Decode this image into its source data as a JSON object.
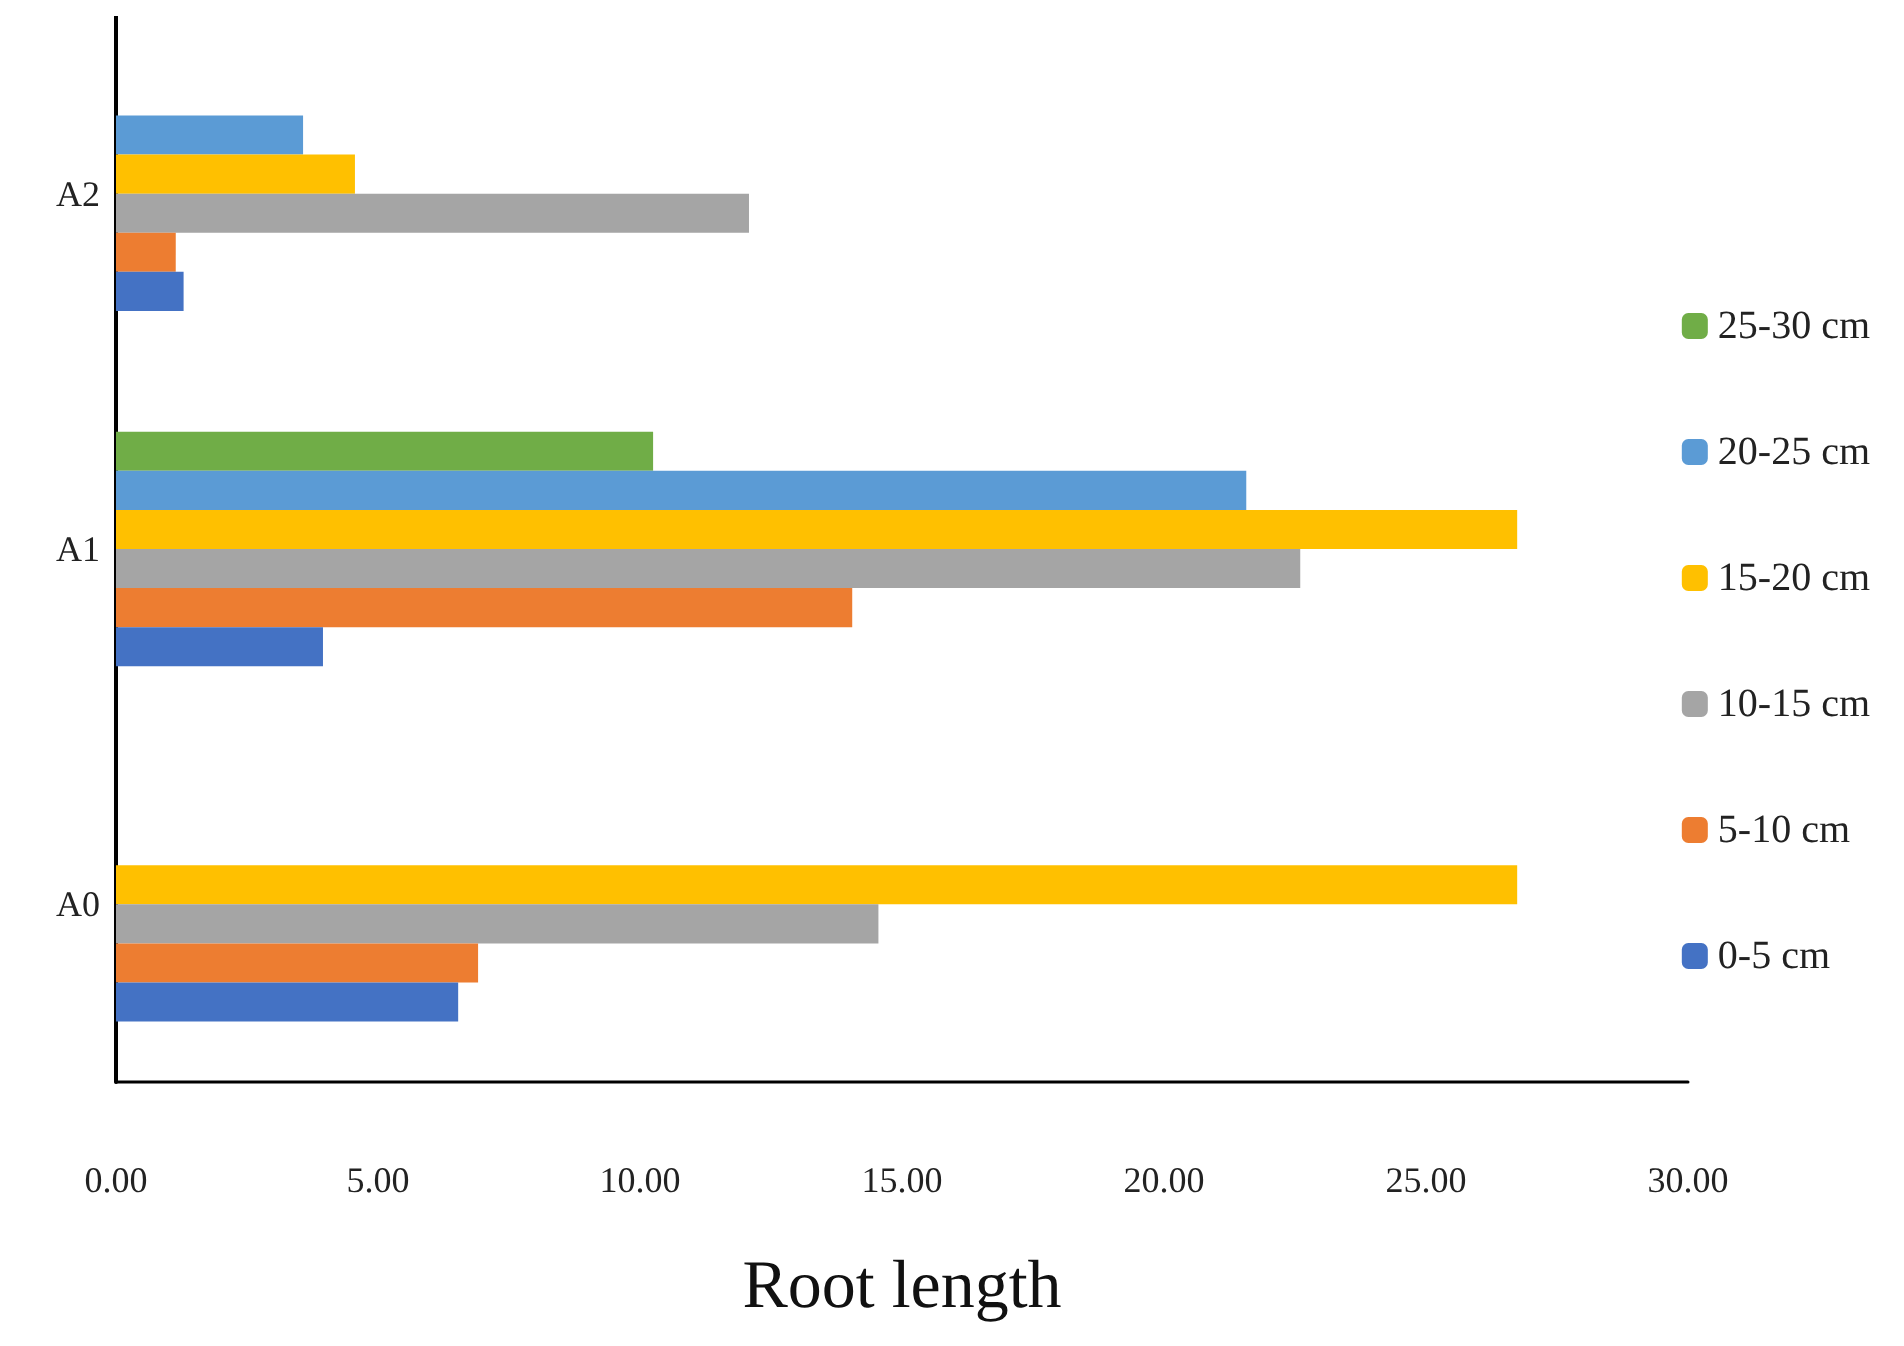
{
  "chart_data": {
    "type": "bar",
    "orientation": "horizontal",
    "xlabel": "Root length",
    "categories": [
      "A2",
      "A1",
      "A0"
    ],
    "series": [
      {
        "name": "0-5 cm",
        "color": "#4472c4",
        "values": [
          1.29,
          3.95,
          6.53
        ]
      },
      {
        "name": "5-10 cm",
        "color": "#ed7d31",
        "values": [
          1.14,
          14.05,
          6.91
        ]
      },
      {
        "name": "10-15 cm",
        "color": "#a5a5a5",
        "values": [
          12.08,
          22.6,
          14.55
        ]
      },
      {
        "name": "15-20 cm",
        "color": "#ffc000",
        "values": [
          4.56,
          26.74,
          26.74
        ]
      },
      {
        "name": "20-25 cm",
        "color": "#5b9bd5",
        "values": [
          3.57,
          21.57,
          null
        ]
      },
      {
        "name": "25-30 cm",
        "color": "#70ad47",
        "values": [
          null,
          10.25,
          null
        ]
      }
    ],
    "xlim": [
      0,
      30
    ],
    "xticks": [
      {
        "value": 0,
        "label": "0.00"
      },
      {
        "value": 5,
        "label": "5.00"
      },
      {
        "value": 10,
        "label": "10.00"
      },
      {
        "value": 15,
        "label": "15.00"
      },
      {
        "value": 20,
        "label": "20.00"
      },
      {
        "value": 25,
        "label": "25.00"
      },
      {
        "value": 30,
        "label": "30.00"
      }
    ],
    "grid": false,
    "legend": "right"
  }
}
